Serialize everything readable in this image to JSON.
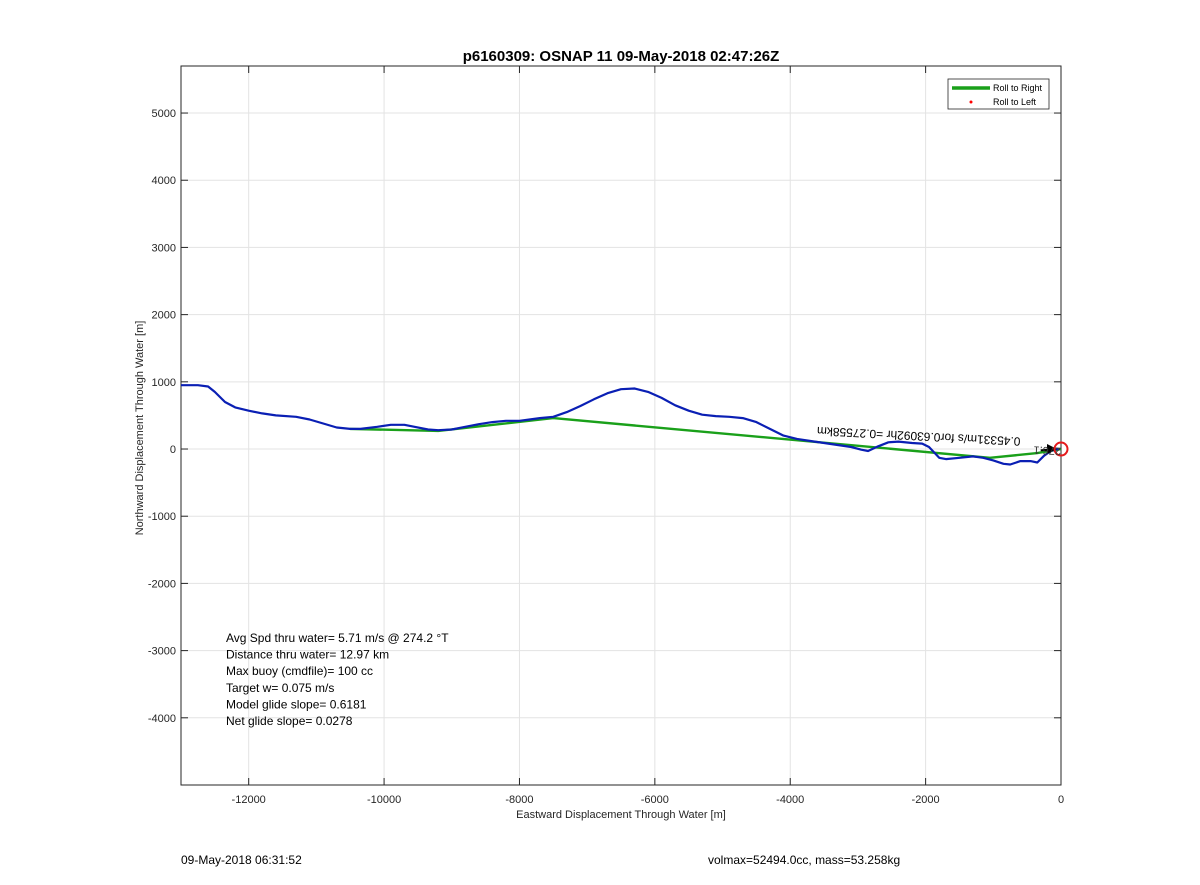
{
  "chart_data": {
    "type": "line",
    "title": "p6160309: OSNAP 11 09-May-2018 02:47:26Z",
    "xlabel": "Eastward Displacement Through Water [m]",
    "ylabel": "Northward Displacement Through Water [m]",
    "xlim": [
      -13000,
      0
    ],
    "ylim": [
      -5000,
      5700
    ],
    "xticks": [
      -12000,
      -10000,
      -8000,
      -6000,
      -4000,
      -2000,
      0
    ],
    "yticks": [
      5000,
      4000,
      3000,
      2000,
      1000,
      0,
      -1000,
      -2000,
      -3000,
      -4000
    ],
    "grid": true,
    "legend": {
      "placement": "top-right",
      "entries": [
        {
          "label": "Roll to Right",
          "color": "#1aa01a",
          "marker": "line"
        },
        {
          "label": "Roll to Left",
          "color": "#ff0000",
          "marker": "dot"
        }
      ]
    },
    "series": [
      {
        "color": "#0a1fb4",
        "x": [
          -13000,
          -12750,
          -12600,
          -12500,
          -12350,
          -12200,
          -12000,
          -11800,
          -11600,
          -11300,
          -11100,
          -10900,
          -10700,
          -10500,
          -10350,
          -10100,
          -9900,
          -9700,
          -9550,
          -9350,
          -9200,
          -9000,
          -8800,
          -8600,
          -8400,
          -8200,
          -8000,
          -7850,
          -7700,
          -7500,
          -7300,
          -7100,
          -6900,
          -6700,
          -6500,
          -6300,
          -6100,
          -5900,
          -5700,
          -5500,
          -5300,
          -5100,
          -4900,
          -4700,
          -4500,
          -4300,
          -4100,
          -3900,
          -3700,
          -3500,
          -3300,
          -3100,
          -2950,
          -2850,
          -2700,
          -2550,
          -2400,
          -2200,
          -2050,
          -1950,
          -1800,
          -1700,
          -1500,
          -1300,
          -1150,
          -1000,
          -850,
          -750,
          -600,
          -450,
          -350,
          -250,
          -150,
          -50
        ],
        "y": [
          950,
          950,
          930,
          850,
          700,
          620,
          570,
          530,
          500,
          480,
          440,
          380,
          320,
          300,
          300,
          330,
          360,
          360,
          330,
          290,
          280,
          290,
          330,
          370,
          400,
          420,
          420,
          440,
          460,
          480,
          550,
          640,
          740,
          830,
          890,
          900,
          850,
          760,
          650,
          570,
          510,
          490,
          480,
          460,
          400,
          300,
          200,
          150,
          120,
          90,
          60,
          30,
          -10,
          -30,
          40,
          100,
          110,
          90,
          80,
          30,
          -130,
          -150,
          -130,
          -110,
          -130,
          -170,
          -220,
          -230,
          -180,
          -180,
          -200,
          -100,
          -30,
          0
        ]
      },
      {
        "color": "#1aa01a",
        "x": [
          -10500,
          -9200,
          -7500,
          -1050,
          -350,
          0
        ],
        "y": [
          300,
          270,
          460,
          -130,
          -60,
          0
        ]
      }
    ],
    "annotations": [
      {
        "text": "Avg Spd thru water=  5.71 m/s @ 274.2 °T"
      },
      {
        "text": "Distance thru water= 12.97 km"
      },
      {
        "text": "Max buoy (cmdfile)= 100 cc"
      },
      {
        "text": "Target w= 0.075 m/s"
      },
      {
        "text": "Model glide slope= 0.6181"
      },
      {
        "text": "Net glide slope= 0.0278"
      }
    ],
    "current_label": "0.45331m/s for0.63092hr =0.27558km",
    "current_label_faint": "276.1",
    "target_marker": {
      "x": 0,
      "y": 0,
      "color": "#e41a1c"
    }
  },
  "footer": {
    "left": "09-May-2018 06:31:52",
    "right": "volmax=52494.0cc, mass=53.258kg"
  }
}
